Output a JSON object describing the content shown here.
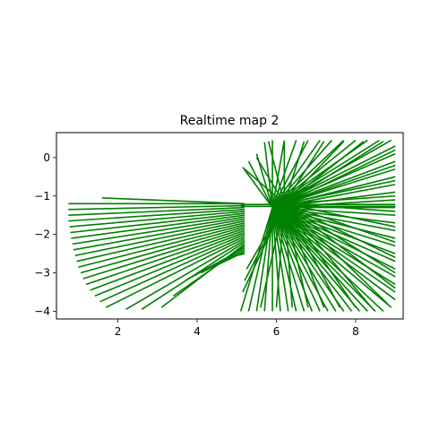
{
  "chart_data": {
    "type": "line",
    "title": "Realtime map 2",
    "xlabel": "",
    "ylabel": "",
    "xlim": [
      0.45,
      9.2
    ],
    "ylim": [
      -4.2,
      0.65
    ],
    "x_ticks": [
      2,
      4,
      6,
      8
    ],
    "y_ticks": [
      0,
      -1,
      -2,
      -3,
      -4
    ],
    "grid": false,
    "legend": "none",
    "series_color": "#008000",
    "rays": {
      "origin_range_x": [
        5.5,
        6.3
      ],
      "origin_range_y": [
        -1.6,
        -1.0
      ],
      "description_free": true
    },
    "series": [
      {
        "values": [
          [
            [
              5.2,
              -1.2
            ],
            [
              1.6,
              -1.05
            ]
          ],
          [
            [
              5.2,
              -1.2
            ],
            [
              0.75,
              -1.2
            ]
          ],
          [
            [
              5.2,
              -1.25
            ],
            [
              0.75,
              -1.35
            ]
          ],
          [
            [
              5.2,
              -1.3
            ],
            [
              0.75,
              -1.5
            ]
          ],
          [
            [
              5.2,
              -1.35
            ],
            [
              0.75,
              -1.65
            ]
          ],
          [
            [
              5.2,
              -1.4
            ],
            [
              0.78,
              -1.8
            ]
          ],
          [
            [
              5.2,
              -1.45
            ],
            [
              0.8,
              -1.95
            ]
          ],
          [
            [
              5.2,
              -1.5
            ],
            [
              0.82,
              -2.1
            ]
          ],
          [
            [
              5.2,
              -1.55
            ],
            [
              0.85,
              -2.25
            ]
          ],
          [
            [
              5.2,
              -1.6
            ],
            [
              0.88,
              -2.4
            ]
          ],
          [
            [
              5.2,
              -1.65
            ],
            [
              0.92,
              -2.55
            ]
          ],
          [
            [
              5.2,
              -1.7
            ],
            [
              0.96,
              -2.7
            ]
          ],
          [
            [
              5.2,
              -1.75
            ],
            [
              1.0,
              -2.85
            ]
          ],
          [
            [
              5.2,
              -1.8
            ],
            [
              1.06,
              -3.0
            ]
          ],
          [
            [
              5.2,
              -1.85
            ],
            [
              1.12,
              -3.15
            ]
          ],
          [
            [
              5.2,
              -1.9
            ],
            [
              1.2,
              -3.3
            ]
          ],
          [
            [
              5.2,
              -1.95
            ],
            [
              1.3,
              -3.45
            ]
          ],
          [
            [
              5.2,
              -2.0
            ],
            [
              1.42,
              -3.6
            ]
          ],
          [
            [
              5.2,
              -2.05
            ],
            [
              1.55,
              -3.75
            ]
          ],
          [
            [
              5.2,
              -2.1
            ],
            [
              1.7,
              -3.9
            ]
          ],
          [
            [
              5.2,
              -2.15
            ],
            [
              2.2,
              -3.95
            ]
          ],
          [
            [
              5.2,
              -2.2
            ],
            [
              2.6,
              -3.95
            ]
          ],
          [
            [
              5.2,
              -2.25
            ],
            [
              3.1,
              -3.9
            ]
          ],
          [
            [
              5.2,
              -2.3
            ],
            [
              3.4,
              -3.6
            ]
          ],
          [
            [
              5.2,
              -2.35
            ],
            [
              3.7,
              -3.2
            ]
          ],
          [
            [
              5.2,
              -2.4
            ],
            [
              4.1,
              -3.0
            ]
          ],
          [
            [
              5.2,
              -2.45
            ],
            [
              4.5,
              -2.8
            ]
          ],
          [
            [
              5.2,
              -2.5
            ],
            [
              4.8,
              -2.6
            ]
          ]
        ]
      },
      {
        "values": [
          [
            [
              5.9,
              -1.3
            ],
            [
              5.1,
              -4.0
            ]
          ],
          [
            [
              5.9,
              -1.3
            ],
            [
              5.3,
              -4.0
            ]
          ],
          [
            [
              5.9,
              -1.3
            ],
            [
              5.5,
              -4.0
            ]
          ],
          [
            [
              5.9,
              -1.3
            ],
            [
              5.7,
              -4.0
            ]
          ],
          [
            [
              5.9,
              -1.3
            ],
            [
              5.9,
              -4.0
            ]
          ],
          [
            [
              5.9,
              -1.3
            ],
            [
              6.1,
              -4.0
            ]
          ],
          [
            [
              5.9,
              -1.3
            ],
            [
              6.3,
              -4.0
            ]
          ],
          [
            [
              5.9,
              -1.3
            ],
            [
              6.5,
              -4.0
            ]
          ],
          [
            [
              5.9,
              -1.3
            ],
            [
              6.7,
              -4.0
            ]
          ],
          [
            [
              5.9,
              -1.3
            ],
            [
              6.9,
              -4.0
            ]
          ],
          [
            [
              5.9,
              -1.3
            ],
            [
              7.1,
              -4.0
            ]
          ],
          [
            [
              5.9,
              -1.3
            ],
            [
              7.3,
              -4.0
            ]
          ],
          [
            [
              5.9,
              -1.3
            ],
            [
              7.5,
              -4.0
            ]
          ],
          [
            [
              5.9,
              -1.3
            ],
            [
              7.7,
              -4.0
            ]
          ],
          [
            [
              5.9,
              -1.3
            ],
            [
              7.9,
              -4.0
            ]
          ],
          [
            [
              5.9,
              -1.3
            ],
            [
              8.1,
              -4.0
            ]
          ],
          [
            [
              5.9,
              -1.3
            ],
            [
              8.3,
              -4.0
            ]
          ],
          [
            [
              5.9,
              -1.3
            ],
            [
              8.5,
              -4.0
            ]
          ],
          [
            [
              5.9,
              -1.3
            ],
            [
              8.7,
              -4.0
            ]
          ],
          [
            [
              5.9,
              -1.3
            ],
            [
              8.9,
              -3.9
            ]
          ],
          [
            [
              5.9,
              -1.3
            ],
            [
              9.0,
              -3.7
            ]
          ],
          [
            [
              5.9,
              -1.3
            ],
            [
              9.0,
              -3.5
            ]
          ],
          [
            [
              5.9,
              -1.3
            ],
            [
              9.0,
              -3.3
            ]
          ],
          [
            [
              5.9,
              -1.3
            ],
            [
              9.0,
              -3.1
            ]
          ],
          [
            [
              5.9,
              -1.3
            ],
            [
              9.0,
              -2.9
            ]
          ],
          [
            [
              5.9,
              -1.3
            ],
            [
              9.0,
              -2.7
            ]
          ],
          [
            [
              5.9,
              -1.3
            ],
            [
              9.0,
              -2.5
            ]
          ],
          [
            [
              5.9,
              -1.3
            ],
            [
              9.0,
              -2.3
            ]
          ],
          [
            [
              5.9,
              -1.3
            ],
            [
              9.0,
              -2.1
            ]
          ],
          [
            [
              5.9,
              -1.3
            ],
            [
              9.0,
              -1.9
            ]
          ],
          [
            [
              5.9,
              -1.3
            ],
            [
              9.0,
              -1.7
            ]
          ],
          [
            [
              5.9,
              -1.3
            ],
            [
              9.0,
              -1.5
            ]
          ],
          [
            [
              5.9,
              -1.3
            ],
            [
              9.0,
              -1.3
            ]
          ],
          [
            [
              5.9,
              -1.3
            ],
            [
              9.0,
              -1.1
            ]
          ],
          [
            [
              5.9,
              -1.3
            ],
            [
              9.0,
              -0.9
            ]
          ],
          [
            [
              5.9,
              -1.3
            ],
            [
              9.0,
              -0.7
            ]
          ],
          [
            [
              5.9,
              -1.3
            ],
            [
              9.0,
              -0.5
            ]
          ],
          [
            [
              5.9,
              -1.3
            ],
            [
              9.0,
              -0.3
            ]
          ],
          [
            [
              5.9,
              -1.3
            ],
            [
              9.0,
              -0.1
            ]
          ],
          [
            [
              5.9,
              -1.3
            ],
            [
              9.0,
              0.1
            ]
          ],
          [
            [
              5.9,
              -1.3
            ],
            [
              9.0,
              0.3
            ]
          ],
          [
            [
              5.9,
              -1.3
            ],
            [
              8.9,
              0.45
            ]
          ],
          [
            [
              5.9,
              -1.3
            ],
            [
              8.6,
              0.45
            ]
          ],
          [
            [
              5.9,
              -1.3
            ],
            [
              8.3,
              0.45
            ]
          ],
          [
            [
              5.9,
              -1.3
            ],
            [
              8.0,
              0.45
            ]
          ],
          [
            [
              5.9,
              -1.3
            ],
            [
              7.7,
              0.45
            ]
          ],
          [
            [
              5.9,
              -1.3
            ],
            [
              7.4,
              0.45
            ]
          ],
          [
            [
              5.9,
              -1.3
            ],
            [
              7.1,
              0.45
            ]
          ],
          [
            [
              5.9,
              -1.3
            ],
            [
              6.8,
              0.45
            ]
          ],
          [
            [
              5.9,
              -1.3
            ],
            [
              6.5,
              0.45
            ]
          ],
          [
            [
              5.9,
              -1.3
            ],
            [
              6.2,
              0.45
            ]
          ],
          [
            [
              5.9,
              -1.3
            ],
            [
              5.9,
              0.45
            ]
          ],
          [
            [
              5.9,
              -1.3
            ],
            [
              5.7,
              0.4
            ]
          ],
          [
            [
              5.9,
              -1.3
            ],
            [
              5.5,
              0.1
            ]
          ],
          [
            [
              5.9,
              -1.3
            ],
            [
              5.3,
              -0.1
            ]
          ],
          [
            [
              5.9,
              -1.3
            ],
            [
              5.15,
              -0.25
            ]
          ]
        ]
      },
      {
        "values": [
          [
            [
              6.2,
              -1.2
            ],
            [
              5.15,
              -3.5
            ]
          ],
          [
            [
              6.2,
              -1.2
            ],
            [
              5.2,
              -3.2
            ]
          ],
          [
            [
              6.2,
              -1.2
            ],
            [
              5.25,
              -2.9
            ]
          ],
          [
            [
              6.2,
              -1.2
            ],
            [
              5.6,
              -3.9
            ]
          ],
          [
            [
              6.2,
              -1.2
            ],
            [
              6.0,
              -3.9
            ]
          ],
          [
            [
              6.2,
              -1.2
            ],
            [
              6.4,
              -3.9
            ]
          ],
          [
            [
              6.2,
              -1.2
            ],
            [
              6.8,
              -3.9
            ]
          ],
          [
            [
              6.2,
              -1.2
            ],
            [
              7.2,
              -3.9
            ]
          ],
          [
            [
              6.2,
              -1.2
            ],
            [
              7.6,
              -3.9
            ]
          ],
          [
            [
              6.2,
              -1.2
            ],
            [
              8.0,
              -3.9
            ]
          ],
          [
            [
              6.2,
              -1.2
            ],
            [
              8.4,
              -3.9
            ]
          ],
          [
            [
              6.2,
              -1.2
            ],
            [
              8.8,
              -3.8
            ]
          ],
          [
            [
              6.2,
              -1.2
            ],
            [
              9.0,
              -3.4
            ]
          ],
          [
            [
              6.2,
              -1.2
            ],
            [
              9.0,
              -3.0
            ]
          ],
          [
            [
              6.2,
              -1.2
            ],
            [
              9.0,
              -2.6
            ]
          ],
          [
            [
              6.2,
              -1.2
            ],
            [
              9.0,
              -2.2
            ]
          ],
          [
            [
              6.2,
              -1.2
            ],
            [
              9.0,
              -1.8
            ]
          ],
          [
            [
              6.2,
              -1.2
            ],
            [
              9.0,
              -1.4
            ]
          ],
          [
            [
              6.2,
              -1.2
            ],
            [
              9.0,
              -1.0
            ]
          ],
          [
            [
              6.2,
              -1.2
            ],
            [
              9.0,
              -0.6
            ]
          ],
          [
            [
              6.2,
              -1.2
            ],
            [
              9.0,
              -0.2
            ]
          ],
          [
            [
              6.2,
              -1.2
            ],
            [
              9.0,
              0.2
            ]
          ],
          [
            [
              6.2,
              -1.2
            ],
            [
              8.7,
              0.42
            ]
          ],
          [
            [
              6.2,
              -1.2
            ],
            [
              8.2,
              0.42
            ]
          ],
          [
            [
              6.2,
              -1.2
            ],
            [
              7.7,
              0.42
            ]
          ],
          [
            [
              6.2,
              -1.2
            ],
            [
              7.2,
              0.42
            ]
          ],
          [
            [
              6.2,
              -1.2
            ],
            [
              6.7,
              0.42
            ]
          ],
          [
            [
              6.2,
              -1.2
            ],
            [
              6.2,
              0.42
            ]
          ],
          [
            [
              6.2,
              -1.2
            ],
            [
              5.8,
              0.42
            ]
          ],
          [
            [
              6.2,
              -1.2
            ],
            [
              5.5,
              0.0
            ]
          ],
          [
            [
              6.2,
              -1.2
            ],
            [
              5.2,
              -0.3
            ]
          ],
          [
            [
              5.1,
              -1.22
            ],
            [
              9.0,
              -1.22
            ]
          ],
          [
            [
              5.1,
              -1.27
            ],
            [
              9.0,
              -1.27
            ]
          ]
        ]
      }
    ]
  }
}
